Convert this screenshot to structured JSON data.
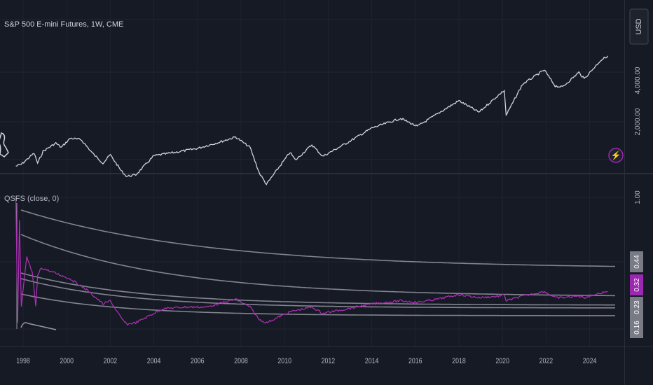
{
  "chart_data": [
    {
      "type": "line",
      "title": "S&P 500 E-mini Futures, 1W, CME",
      "currency": "USD",
      "y_scale": "log",
      "y_ticks": [
        "2,000.00",
        "4,000.00"
      ],
      "y_tick_values": [
        2000,
        4000
      ],
      "ylim": [
        800,
        6600
      ],
      "grid": true,
      "series": [
        {
          "color": "#d1d4dc",
          "points": [
            [
              "1997-09",
              950
            ],
            [
              "1997-12",
              980
            ],
            [
              "1998-07",
              1180
            ],
            [
              "1998-09",
              1000
            ],
            [
              "1998-12",
              1220
            ],
            [
              "1999-07",
              1400
            ],
            [
              "1999-10",
              1300
            ],
            [
              "2000-03",
              1520
            ],
            [
              "2000-09",
              1480
            ],
            [
              "2001-04",
              1150
            ],
            [
              "2001-09",
              1000
            ],
            [
              "2002-01",
              1150
            ],
            [
              "2002-07",
              880
            ],
            [
              "2002-10",
              800
            ],
            [
              "2003-03",
              820
            ],
            [
              "2004-01",
              1130
            ],
            [
              "2005-01",
              1200
            ],
            [
              "2006-01",
              1280
            ],
            [
              "2007-01",
              1420
            ],
            [
              "2007-10",
              1550
            ],
            [
              "2008-06",
              1300
            ],
            [
              "2008-11",
              850
            ],
            [
              "2009-03",
              700
            ],
            [
              "2010-04",
              1200
            ],
            [
              "2010-07",
              1050
            ],
            [
              "2011-04",
              1360
            ],
            [
              "2011-10",
              1120
            ],
            [
              "2012-12",
              1420
            ],
            [
              "2014-01",
              1800
            ],
            [
              "2015-05",
              2120
            ],
            [
              "2016-02",
              1850
            ],
            [
              "2017-01",
              2280
            ],
            [
              "2018-01",
              2850
            ],
            [
              "2018-12",
              2350
            ],
            [
              "2019-12",
              3230
            ],
            [
              "2020-02",
              3380
            ],
            [
              "2020-03",
              2230
            ],
            [
              "2020-12",
              3750
            ],
            [
              "2021-12",
              4770
            ],
            [
              "2022-06",
              3650
            ],
            [
              "2022-10",
              3580
            ],
            [
              "2023-07",
              4580
            ],
            [
              "2023-10",
              4120
            ],
            [
              "2024-07",
              5600
            ],
            [
              "2024-11",
              6050
            ]
          ]
        }
      ],
      "logo_text": "⚡"
    },
    {
      "type": "line",
      "title": "QSFS (close, 0)",
      "y_ticks": [
        "1.00"
      ],
      "y_tick_values": [
        1.0
      ],
      "ylim": [
        0.08,
        1.04
      ],
      "x_labels": [
        "1998",
        "2000",
        "2002",
        "2004",
        "2006",
        "2008",
        "2010",
        "2012",
        "2014",
        "2016",
        "2018",
        "2020",
        "2022",
        "2024"
      ],
      "value_labels": [
        {
          "text": "0.44",
          "color": "#787b86"
        },
        {
          "text": "0.32",
          "color": "#9c27b0"
        },
        {
          "text": "0.23",
          "color": "#787b86"
        },
        {
          "text": "0.16",
          "color": "#787b86"
        }
      ],
      "series": [
        {
          "color": "#b030b8",
          "points": [
            [
              "1997-09",
              1.0
            ],
            [
              "1997-10",
              0.2
            ],
            [
              "1997-11",
              0.85
            ],
            [
              "1997-12",
              0.3
            ],
            [
              "1998-03",
              0.62
            ],
            [
              "1998-06",
              0.52
            ],
            [
              "1998-08",
              0.3
            ],
            [
              "1998-09",
              0.5
            ],
            [
              "1998-11",
              0.55
            ],
            [
              "1999-06",
              0.52
            ],
            [
              "2000-03",
              0.48
            ],
            [
              "2000-12",
              0.41
            ],
            [
              "2001-09",
              0.32
            ],
            [
              "2002-01",
              0.34
            ],
            [
              "2002-07",
              0.23
            ],
            [
              "2002-10",
              0.19
            ],
            [
              "2003-03",
              0.2
            ],
            [
              "2004-06",
              0.29
            ],
            [
              "2005-06",
              0.3
            ],
            [
              "2006-06",
              0.3
            ],
            [
              "2007-10",
              0.35
            ],
            [
              "2008-06",
              0.3
            ],
            [
              "2008-11",
              0.22
            ],
            [
              "2009-03",
              0.2
            ],
            [
              "2010-04",
              0.27
            ],
            [
              "2011-04",
              0.3
            ],
            [
              "2011-10",
              0.26
            ],
            [
              "2012-12",
              0.29
            ],
            [
              "2014-01",
              0.32
            ],
            [
              "2015-05",
              0.34
            ],
            [
              "2016-02",
              0.33
            ],
            [
              "2017-01",
              0.35
            ],
            [
              "2018-01",
              0.38
            ],
            [
              "2018-12",
              0.36
            ],
            [
              "2019-12",
              0.37
            ],
            [
              "2020-02",
              0.38
            ],
            [
              "2020-03",
              0.34
            ],
            [
              "2020-12",
              0.37
            ],
            [
              "2021-12",
              0.4
            ],
            [
              "2022-06",
              0.36
            ],
            [
              "2022-10",
              0.36
            ],
            [
              "2023-07",
              0.37
            ],
            [
              "2023-10",
              0.36
            ],
            [
              "2024-07",
              0.39
            ],
            [
              "2024-11",
              0.4
            ]
          ]
        }
      ]
    }
  ]
}
